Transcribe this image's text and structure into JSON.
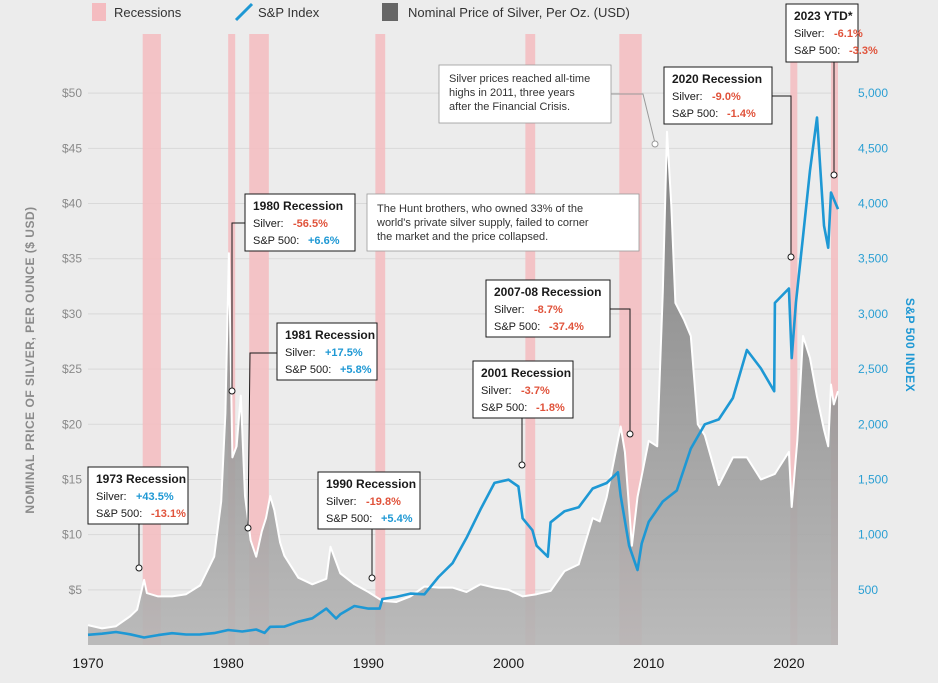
{
  "legend": {
    "recessions": "Recessions",
    "sp": "S&P Index",
    "silver": "Nominal Price of Silver, Per Oz. (USD)"
  },
  "colors": {
    "recession": "#f4bcc0",
    "sp": "#1e98d4",
    "silver_fill": "#8c8c8c",
    "silver_line": "#ffffff",
    "positive": "#1e98d4",
    "negative": "#e0533b"
  },
  "chart_data": {
    "type": "line",
    "title": "",
    "xlabel": "",
    "ylabel_left": "NOMINAL PRICE OF SILVER, PER OUNCE ($ USD)",
    "ylabel_right": "S&P 500 INDEX",
    "xlim": [
      1970,
      2023.5
    ],
    "ylim_left": [
      0,
      55
    ],
    "ylim_right": [
      0,
      5500
    ],
    "x_ticks": [
      "1970",
      "1980",
      "1990",
      "2000",
      "2010",
      "2020"
    ],
    "left_ticks": [
      "$5",
      "$10",
      "$15",
      "$20",
      "$25",
      "$30",
      "$35",
      "$40",
      "$45",
      "$50"
    ],
    "right_ticks": [
      "500",
      "1,000",
      "1,500",
      "2,000",
      "2,500",
      "3,000",
      "3,500",
      "4,000",
      "4,500",
      "5,000"
    ],
    "recessions": [
      {
        "start": 1973.9,
        "end": 1975.2
      },
      {
        "start": 1980.0,
        "end": 1980.5
      },
      {
        "start": 1981.5,
        "end": 1982.9
      },
      {
        "start": 1990.5,
        "end": 1991.2
      },
      {
        "start": 2001.2,
        "end": 2001.9
      },
      {
        "start": 2007.9,
        "end": 2009.5
      },
      {
        "start": 2020.1,
        "end": 2020.6
      },
      {
        "start": 2023.0,
        "end": 2023.5
      }
    ],
    "series": [
      {
        "name": "Nominal Price of Silver, Per Oz. (USD)",
        "axis": "left",
        "x": [
          1970,
          1971,
          1972,
          1973,
          1973.5,
          1974.0,
          1974.2,
          1975,
          1976,
          1977,
          1978,
          1979,
          1979.5,
          1979.8,
          1980.05,
          1980.3,
          1980.6,
          1980.9,
          1981.2,
          1981.6,
          1982.0,
          1982.4,
          1982.7,
          1983.0,
          1983.3,
          1983.7,
          1984,
          1985,
          1986,
          1987.0,
          1987.3,
          1988,
          1989,
          1990,
          1991,
          1992,
          1993,
          1994,
          1995,
          1996,
          1997,
          1998,
          1999,
          2000,
          2001,
          2002,
          2003,
          2004,
          2005,
          2006,
          2006.5,
          2007,
          2008.0,
          2008.3,
          2008.8,
          2009.2,
          2010.0,
          2010.6,
          2011.0,
          2011.3,
          2011.6,
          2011.9,
          2012.5,
          2013.0,
          2013.5,
          2014,
          2015,
          2016,
          2017,
          2018,
          2019,
          2020.0,
          2020.2,
          2020.6,
          2021.0,
          2021.5,
          2022,
          2022.5,
          2022.8,
          2023.0,
          2023.2,
          2023.5
        ],
        "values": [
          1.8,
          1.5,
          1.7,
          2.6,
          3.2,
          5.9,
          4.7,
          4.4,
          4.4,
          4.6,
          5.4,
          8.0,
          13,
          21,
          35.5,
          17,
          18,
          22.6,
          13.5,
          9.5,
          8.0,
          10.3,
          11.5,
          13.5,
          12.2,
          9.3,
          8.1,
          6.1,
          5.5,
          6.0,
          8.9,
          6.5,
          5.5,
          4.8,
          4.0,
          3.9,
          4.4,
          5.3,
          5.2,
          5.2,
          4.8,
          5.5,
          5.2,
          5.0,
          4.4,
          4.6,
          4.9,
          6.7,
          7.3,
          11.5,
          11.2,
          13.4,
          19.8,
          17.5,
          9.0,
          13.4,
          18.5,
          18.0,
          32.0,
          46.5,
          40.0,
          31.0,
          29.5,
          28.0,
          20.0,
          19.0,
          14.5,
          17.0,
          17.0,
          15.0,
          15.5,
          17.5,
          12.5,
          18.5,
          28.0,
          26.0,
          22.5,
          19.5,
          18.0,
          23.6,
          21.8,
          23.0
        ]
      },
      {
        "name": "S&P Index",
        "axis": "right",
        "x": [
          1970,
          1971,
          1972,
          1973,
          1974,
          1975,
          1976,
          1977,
          1978,
          1979,
          1980,
          1981,
          1982,
          1982.6,
          1983,
          1984,
          1985,
          1986,
          1987,
          1987.7,
          1988,
          1989,
          1990,
          1990.8,
          1991,
          1992,
          1993,
          1994,
          1995,
          1996,
          1997,
          1998,
          1999,
          2000.0,
          2000.7,
          2001,
          2001.7,
          2002,
          2002.8,
          2003,
          2004,
          2005,
          2006,
          2007,
          2007.8,
          2008,
          2008.6,
          2009.2,
          2009.5,
          2010,
          2011,
          2012,
          2013,
          2014,
          2015,
          2016,
          2017,
          2018,
          2018.95,
          2019,
          2020.0,
          2020.2,
          2020.5,
          2021,
          2021.5,
          2022.0,
          2022.5,
          2022.8,
          2023.0,
          2023.5
        ],
        "values": [
          92,
          102,
          118,
          97,
          68,
          90,
          107,
          95,
          96,
          108,
          136,
          122,
          140,
          110,
          165,
          167,
          211,
          242,
          330,
          240,
          278,
          353,
          330,
          330,
          417,
          436,
          466,
          459,
          616,
          741,
          970,
          1229,
          1469,
          1498,
          1436,
          1148,
          1040,
          900,
          800,
          1112,
          1212,
          1248,
          1418,
          1468,
          1565,
          1350,
          900,
          680,
          920,
          1115,
          1300,
          1400,
          1780,
          2000,
          2044,
          2238,
          2673,
          2506,
          2300,
          3100,
          3230,
          2600,
          3100,
          3700,
          4300,
          4780,
          3800,
          3600,
          4100,
          3950
        ]
      }
    ],
    "annotations": [
      {
        "title": "1973 Recession",
        "silver": "+43.5%",
        "sp": "-13.1%"
      },
      {
        "title": "1980 Recession",
        "silver": "-56.5%",
        "sp": "+6.6%"
      },
      {
        "title": "1981 Recession",
        "silver": "+17.5%",
        "sp": "+5.8%"
      },
      {
        "title": "1990 Recession",
        "silver": "-19.8%",
        "sp": "+5.4%"
      },
      {
        "title": "2001 Recession",
        "silver": "-3.7%",
        "sp": "-1.8%"
      },
      {
        "title": "2007-08 Recession",
        "silver": "-8.7%",
        "sp": "-37.4%"
      },
      {
        "title": "2020 Recession",
        "silver": "-9.0%",
        "sp": "-1.4%"
      },
      {
        "title": "2023 YTD*",
        "silver": "-6.1%",
        "sp": "-3.3%"
      }
    ],
    "labels": {
      "silver": "Silver:",
      "sp": "S&P 500:"
    },
    "notes": [
      {
        "lines": [
          "The Hunt brothers, who owned 33% of the",
          "world's private silver supply, failed to corner",
          "the market and the price collapsed."
        ]
      },
      {
        "lines": [
          "Silver prices reached all-time",
          "highs in 2011, three years",
          "after the Financial Crisis."
        ]
      }
    ]
  }
}
